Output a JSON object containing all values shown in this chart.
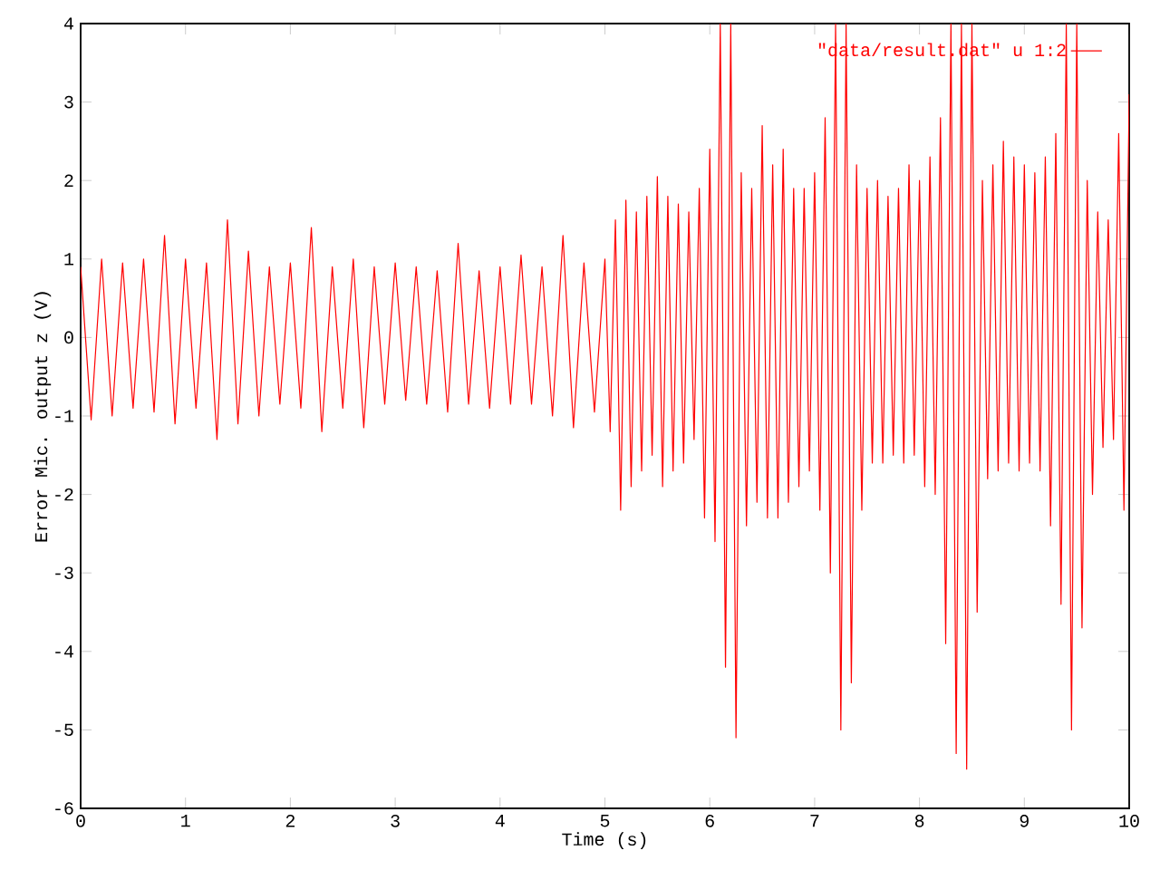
{
  "chart_data": {
    "type": "line",
    "xlabel": "Time (s)",
    "ylabel": "Error Mic. output z (V)",
    "xlim": [
      0,
      10
    ],
    "ylim": [
      -6,
      4
    ],
    "xticks": [
      0,
      1,
      2,
      3,
      4,
      5,
      6,
      7,
      8,
      9,
      10
    ],
    "yticks": [
      -6,
      -5,
      -4,
      -3,
      -2,
      -1,
      0,
      1,
      2,
      3,
      4
    ],
    "legend": "top right",
    "line_style": "solid",
    "series": [
      {
        "name": "\"data/result.dat\" u 1:2",
        "color": "#ff0000",
        "x": [
          0,
          0.1,
          0.2,
          0.3,
          0.4,
          0.5,
          0.6,
          0.7,
          0.8,
          0.9,
          1.0,
          1.1,
          1.2,
          1.3,
          1.4,
          1.5,
          1.6,
          1.7,
          1.8,
          1.9,
          2.0,
          2.1,
          2.2,
          2.3,
          2.4,
          2.5,
          2.6,
          2.7,
          2.8,
          2.9,
          3.0,
          3.1,
          3.2,
          3.3,
          3.4,
          3.5,
          3.6,
          3.7,
          3.8,
          3.9,
          4.0,
          4.1,
          4.2,
          4.3,
          4.4,
          4.5,
          4.6,
          4.7,
          4.8,
          4.9,
          5.0,
          5.05,
          5.1,
          5.15,
          5.2,
          5.25,
          5.3,
          5.35,
          5.4,
          5.45,
          5.5,
          5.55,
          5.6,
          5.65,
          5.7,
          5.75,
          5.8,
          5.85,
          5.9,
          5.95,
          6.0,
          6.05,
          6.1,
          6.15,
          6.2,
          6.25,
          6.3,
          6.35,
          6.4,
          6.45,
          6.5,
          6.55,
          6.6,
          6.65,
          6.7,
          6.75,
          6.8,
          6.85,
          6.9,
          6.95,
          7.0,
          7.05,
          7.1,
          7.15,
          7.2,
          7.25,
          7.3,
          7.35,
          7.4,
          7.45,
          7.5,
          7.55,
          7.6,
          7.65,
          7.7,
          7.75,
          7.8,
          7.85,
          7.9,
          7.95,
          8.0,
          8.05,
          8.1,
          8.15,
          8.2,
          8.25,
          8.3,
          8.35,
          8.4,
          8.45,
          8.5,
          8.55,
          8.6,
          8.65,
          8.7,
          8.75,
          8.8,
          8.85,
          8.9,
          8.95,
          9.0,
          9.05,
          9.1,
          9.15,
          9.2,
          9.25,
          9.3,
          9.35,
          9.4,
          9.45,
          9.5,
          9.55,
          9.6,
          9.65,
          9.7,
          9.75,
          9.8,
          9.85,
          9.9,
          9.95,
          10.0
        ],
        "values": [
          0.9,
          -1.05,
          1.0,
          -1.0,
          0.95,
          -0.9,
          1.0,
          -0.95,
          1.3,
          -1.1,
          1.0,
          -0.9,
          0.95,
          -1.3,
          1.5,
          -1.1,
          1.1,
          -1.0,
          0.9,
          -0.85,
          0.95,
          -0.9,
          1.4,
          -1.2,
          0.9,
          -0.9,
          1.0,
          -1.15,
          0.9,
          -0.85,
          0.95,
          -0.8,
          0.9,
          -0.85,
          0.85,
          -0.95,
          1.2,
          -0.85,
          0.85,
          -0.9,
          0.9,
          -0.85,
          1.05,
          -0.85,
          0.9,
          -1.0,
          1.3,
          -1.15,
          0.95,
          -0.95,
          1.0,
          -1.2,
          1.5,
          -2.2,
          1.75,
          -1.9,
          1.6,
          -1.7,
          1.8,
          -1.5,
          2.05,
          -1.9,
          1.8,
          -1.7,
          1.7,
          -1.6,
          1.6,
          -1.3,
          1.9,
          -2.3,
          2.4,
          -2.6,
          4,
          -4.2,
          4,
          -5.1,
          2.1,
          -2.4,
          1.9,
          -2.1,
          2.7,
          -2.3,
          2.2,
          -2.3,
          2.4,
          -2.1,
          1.9,
          -1.9,
          1.9,
          -1.7,
          2.1,
          -2.2,
          2.8,
          -3.0,
          4,
          -5.0,
          4,
          -4.4,
          2.2,
          -2.2,
          1.9,
          -1.6,
          2.0,
          -1.6,
          1.8,
          -1.5,
          1.9,
          -1.6,
          2.2,
          -1.5,
          2.0,
          -1.9,
          2.3,
          -2.0,
          2.8,
          -3.9,
          4,
          -5.3,
          4,
          -5.5,
          4,
          -3.5,
          2.0,
          -1.8,
          2.2,
          -1.7,
          2.5,
          -1.6,
          2.3,
          -1.7,
          2.2,
          -1.6,
          2.1,
          -1.7,
          2.3,
          -2.4,
          2.6,
          -3.4,
          4,
          -5.0,
          4,
          -3.7,
          2.0,
          -2.0,
          1.6,
          -1.4,
          1.5,
          -1.3,
          2.6,
          -2.2,
          3.1
        ]
      }
    ]
  }
}
